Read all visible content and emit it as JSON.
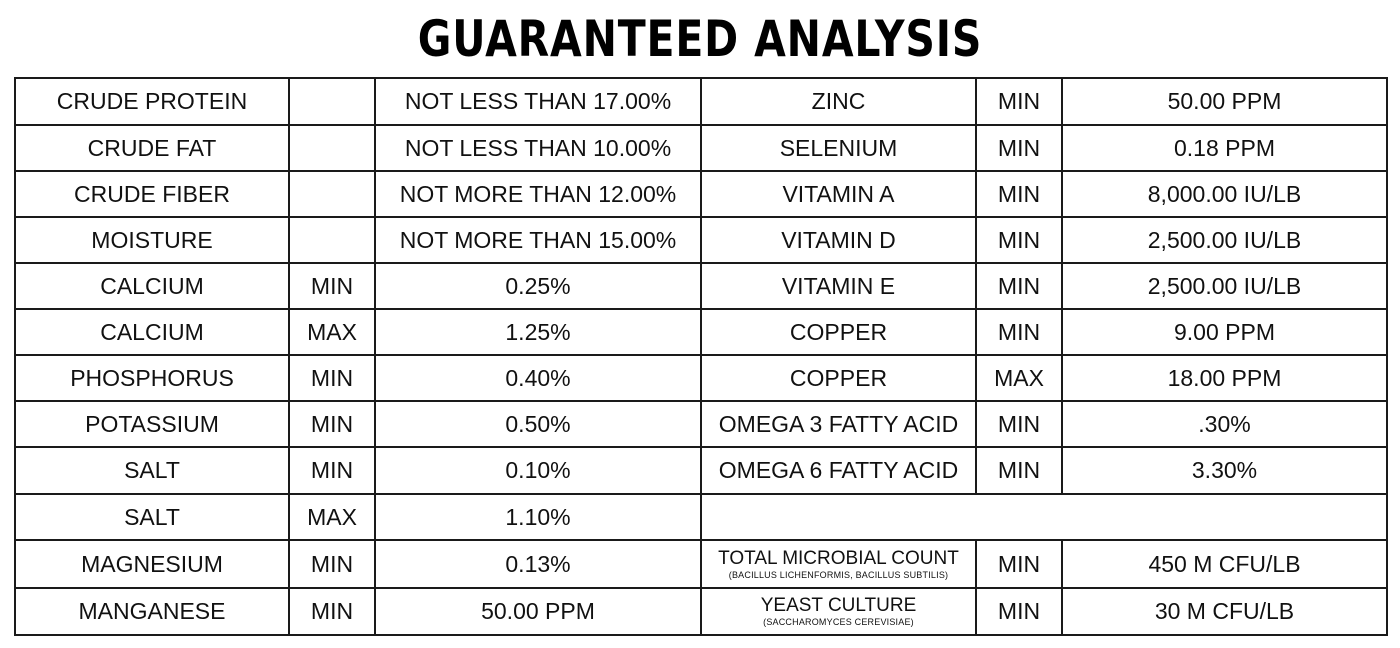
{
  "title": "GUARANTEED ANALYSIS",
  "left_rows": [
    {
      "name": "CRUDE PROTEIN",
      "qualifier": "",
      "value": "NOT LESS THAN 17.00%"
    },
    {
      "name": "CRUDE FAT",
      "qualifier": "",
      "value": "NOT LESS THAN 10.00%"
    },
    {
      "name": "CRUDE FIBER",
      "qualifier": "",
      "value": "NOT MORE THAN 12.00%"
    },
    {
      "name": "MOISTURE",
      "qualifier": "",
      "value": "NOT MORE THAN 15.00%"
    },
    {
      "name": "CALCIUM",
      "qualifier": "MIN",
      "value": "0.25%"
    },
    {
      "name": "CALCIUM",
      "qualifier": "MAX",
      "value": "1.25%"
    },
    {
      "name": "PHOSPHORUS",
      "qualifier": "MIN",
      "value": "0.40%"
    },
    {
      "name": "POTASSIUM",
      "qualifier": "MIN",
      "value": "0.50%"
    },
    {
      "name": "SALT",
      "qualifier": "MIN",
      "value": "0.10%"
    },
    {
      "name": "SALT",
      "qualifier": "MAX",
      "value": "1.10%"
    },
    {
      "name": "MAGNESIUM",
      "qualifier": "MIN",
      "value": "0.13%"
    },
    {
      "name": "MANGANESE",
      "qualifier": "MIN",
      "value": "50.00 PPM"
    }
  ],
  "right_rows": [
    {
      "name": "ZINC",
      "sub": "",
      "qualifier": "MIN",
      "value": "50.00 PPM"
    },
    {
      "name": "SELENIUM",
      "sub": "",
      "qualifier": "MIN",
      "value": "0.18 PPM"
    },
    {
      "name": "VITAMIN A",
      "sub": "",
      "qualifier": "MIN",
      "value": "8,000.00 IU/LB"
    },
    {
      "name": "VITAMIN D",
      "sub": "",
      "qualifier": "MIN",
      "value": "2,500.00 IU/LB"
    },
    {
      "name": "VITAMIN E",
      "sub": "",
      "qualifier": "MIN",
      "value": "2,500.00 IU/LB"
    },
    {
      "name": "COPPER",
      "sub": "",
      "qualifier": "MIN",
      "value": "9.00 PPM"
    },
    {
      "name": "COPPER",
      "sub": "",
      "qualifier": "MAX",
      "value": "18.00 PPM"
    },
    {
      "name": "OMEGA 3 FATTY ACID",
      "sub": "",
      "qualifier": "MIN",
      "value": ".30%"
    },
    {
      "name": "OMEGA 6 FATTY ACID",
      "sub": "",
      "qualifier": "MIN",
      "value": "3.30%"
    },
    null,
    {
      "name": "TOTAL MICROBIAL COUNT",
      "sub": "(BACILLUS LICHENFORMIS, BACILLUS SUBTILIS)",
      "qualifier": "MIN",
      "value": "450 M CFU/LB"
    },
    {
      "name": "YEAST CULTURE",
      "sub": "(SACCHAROMYCES CEREVISIAE)",
      "qualifier": "MIN",
      "value": "30 M CFU/LB"
    }
  ],
  "colors": {
    "text": "#111111",
    "border": "#1a1a1a",
    "background": "#ffffff"
  }
}
